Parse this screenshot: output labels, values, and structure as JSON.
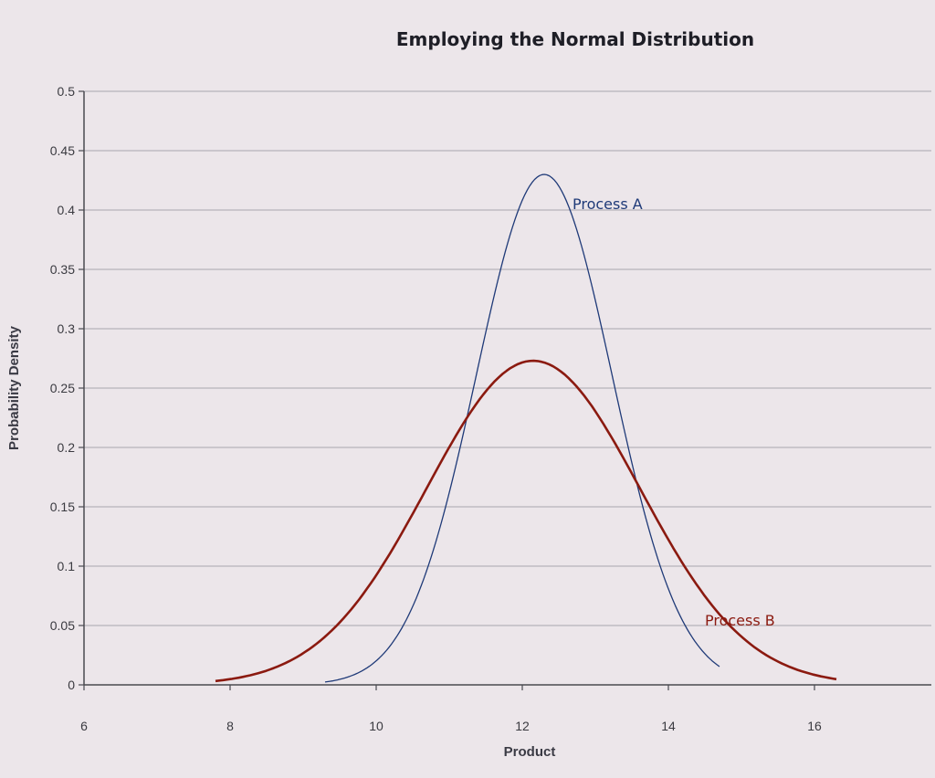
{
  "chart_data": {
    "type": "line",
    "title": "Employing the Normal Distribution",
    "xlabel": "Product",
    "ylabel": "Probability Density",
    "xlim": [
      6,
      16
    ],
    "ylim": [
      0,
      0.5
    ],
    "x_ticks": [
      "6",
      "8",
      "10",
      "12",
      "14",
      "16"
    ],
    "y_ticks": [
      "0",
      "0.05",
      "0.1",
      "0.15",
      "0.2",
      "0.25",
      "0.3",
      "0.35",
      "0.4",
      "0.45",
      "0.5"
    ],
    "grid": true,
    "legend": "none",
    "series": [
      {
        "name": "Process A",
        "color": "#1f3a78",
        "mean": 12.3,
        "std": 0.93,
        "x_range": [
          9.3,
          14.7
        ],
        "peak": 0.43
      },
      {
        "name": "Process B",
        "color": "#8b1a10",
        "mean": 12.15,
        "std": 1.46,
        "x_range": [
          7.8,
          16.3
        ],
        "peak": 0.273
      }
    ]
  }
}
